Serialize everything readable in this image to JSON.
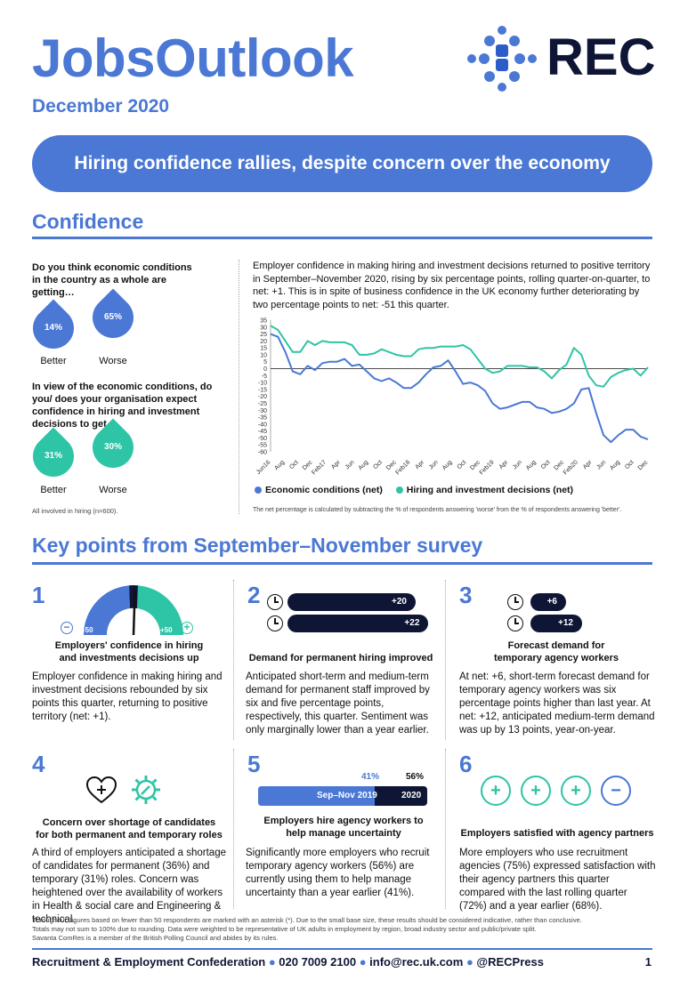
{
  "header": {
    "title": "JobsOutlook",
    "date": "December 2020",
    "logo_text": "REC",
    "banner": "Hiring confidence rallies, despite concern over the economy"
  },
  "confidence": {
    "heading": "Confidence",
    "q1": "Do you think economic conditions in the country as a whole are getting…",
    "q1_better_pct": "14%",
    "q1_worse_pct": "65%",
    "q2": "In view of the economic conditions, do you/ does your organisation expect confidence in hiring and investment decisions to get…",
    "q2_better_pct": "31%",
    "q2_worse_pct": "30%",
    "better_label": "Better",
    "worse_label": "Worse",
    "base_note": "All involved in hiring (n=600).",
    "chart_intro": "Employer confidence in making hiring and investment decisions returned to positive territory in September–November 2020, rising by six percentage points, rolling quarter-on-quarter, to net: +1. This is in spite of business confidence in the UK economy further deteriorating by two percentage points to net: -51 this quarter.",
    "legend_econ": "Economic conditions (net)",
    "legend_hiring": "Hiring and investment decisions (net)",
    "chart_note": "The net percentage is calculated by subtracting the % of respondents answering 'worse' from the % of respondents answering 'better'.",
    "colors": {
      "econ": "#4a78d4",
      "hiring": "#2ec4a6"
    }
  },
  "chart_data": {
    "type": "line",
    "ylim": [
      -60,
      35
    ],
    "yticks": [
      35,
      30,
      25,
      20,
      15,
      10,
      5,
      0,
      -5,
      -10,
      -15,
      -20,
      -25,
      -30,
      -35,
      -40,
      -45,
      -50,
      -55,
      -60
    ],
    "xticks": [
      "Jun16",
      "Aug",
      "Oct",
      "Dec",
      "Feb17",
      "Apr",
      "Jun",
      "Aug",
      "Oct",
      "Dec",
      "Feb18",
      "Apr",
      "Jun",
      "Aug",
      "Oct",
      "Dec",
      "Feb19",
      "Apr",
      "Jun",
      "Aug",
      "Oct",
      "Dec",
      "Feb20",
      "Apr",
      "Jun",
      "Aug",
      "Oct",
      "Dec"
    ],
    "series": [
      {
        "name": "Economic conditions (net)",
        "values": [
          25,
          23,
          12,
          -2,
          -4,
          2,
          -1,
          4,
          5,
          5,
          7,
          2,
          3,
          -2,
          -7,
          -9,
          -7,
          -10,
          -14,
          -14,
          -10,
          -4,
          1,
          2,
          6,
          -2,
          -11,
          -10,
          -12,
          -16,
          -25,
          -29,
          -28,
          -26,
          -24,
          -24,
          -28,
          -29,
          -32,
          -31,
          -29,
          -25,
          -15,
          -14,
          -32,
          -48,
          -53,
          -48,
          -44,
          -44,
          -49,
          -51
        ]
      },
      {
        "name": "Hiring and investment decisions (net)",
        "values": [
          31,
          28,
          20,
          12,
          12,
          20,
          17,
          20,
          19,
          19,
          19,
          17,
          10,
          10,
          11,
          14,
          12,
          10,
          9,
          9,
          14,
          15,
          15,
          16,
          16,
          16,
          17,
          14,
          7,
          0,
          -3,
          -2,
          2,
          2,
          2,
          1,
          1,
          -2,
          -7,
          -1,
          3,
          15,
          10,
          -5,
          -12,
          -13,
          -6,
          -3,
          -1,
          0,
          -5,
          1
        ]
      }
    ]
  },
  "keypoints": {
    "heading": "Key points from September–November survey",
    "p1": {
      "num": "1",
      "gauge_min": "-50",
      "gauge_max": "+50",
      "gauge_value": 1,
      "caption": "Employers' confidence in hiring and investments decisions up",
      "text": "Employer confidence in making hiring and investment decisions rebounded by six points this quarter, returning to positive territory (net: +1)."
    },
    "p2": {
      "num": "2",
      "short": "+20",
      "medium": "+22",
      "short_value": 20,
      "medium_value": 22,
      "caption": "Demand for permanent hiring improved",
      "text": "Anticipated short-term and medium-term demand for permanent staff improved by six and five percentage points, respectively, this quarter. Sentiment was only marginally lower than a year earlier."
    },
    "p3": {
      "num": "3",
      "short": "+6",
      "medium": "+12",
      "short_value": 6,
      "medium_value": 12,
      "caption": "Forecast demand for temporary agency workers",
      "text": "At net: +6, short-term forecast demand for temporary agency workers was six percentage points higher than last year. At net: +12, anticipated medium-term demand was up by 13 points, year-on-year."
    },
    "p4": {
      "num": "4",
      "caption": "Concern over shortage of candidates for both permanent and temporary roles",
      "text": "A third of employers anticipated a shortage of candidates for permanent (36%) and temporary (31%) roles. Concern was heightened over the availability of workers in Health & social care and Engineering & technical."
    },
    "p5": {
      "num": "5",
      "pct_2019": "41%",
      "pct_2020": "56%",
      "label_2019": "Sep–Nov 2019",
      "label_2020": "2020",
      "caption": "Employers hire agency workers to help manage uncertainty",
      "text": "Significantly more employers who recruit temporary agency workers (56%) are currently using them to help manage uncertainty than a year earlier (41%)."
    },
    "p6": {
      "num": "6",
      "caption": "Employers satisfied with agency partners",
      "text": "More employers who use recruitment agencies (75%) expressed satisfaction with their agency partners this quarter compared with the last rolling quarter (72%) and a year earlier (68%)."
    }
  },
  "footnotes": {
    "line1": "Throughout, figures based on fewer than 50 respondents are marked with an asterisk (*). Due to the small base size, these results should be considered indicative, rather than conclusive.",
    "line2": "Totals may not sum to 100% due to rounding. Data were weighted to be representative of UK adults in employment by region, broad industry sector and public/private split.",
    "line3": "Savanta ComRes is a member of the British Polling Council and abides by its rules."
  },
  "footer": {
    "org": "Recruitment & Employment Confederation",
    "phone": "020 7009 2100",
    "email": "info@rec.uk.com",
    "twitter": "@RECPress",
    "page": "1"
  }
}
